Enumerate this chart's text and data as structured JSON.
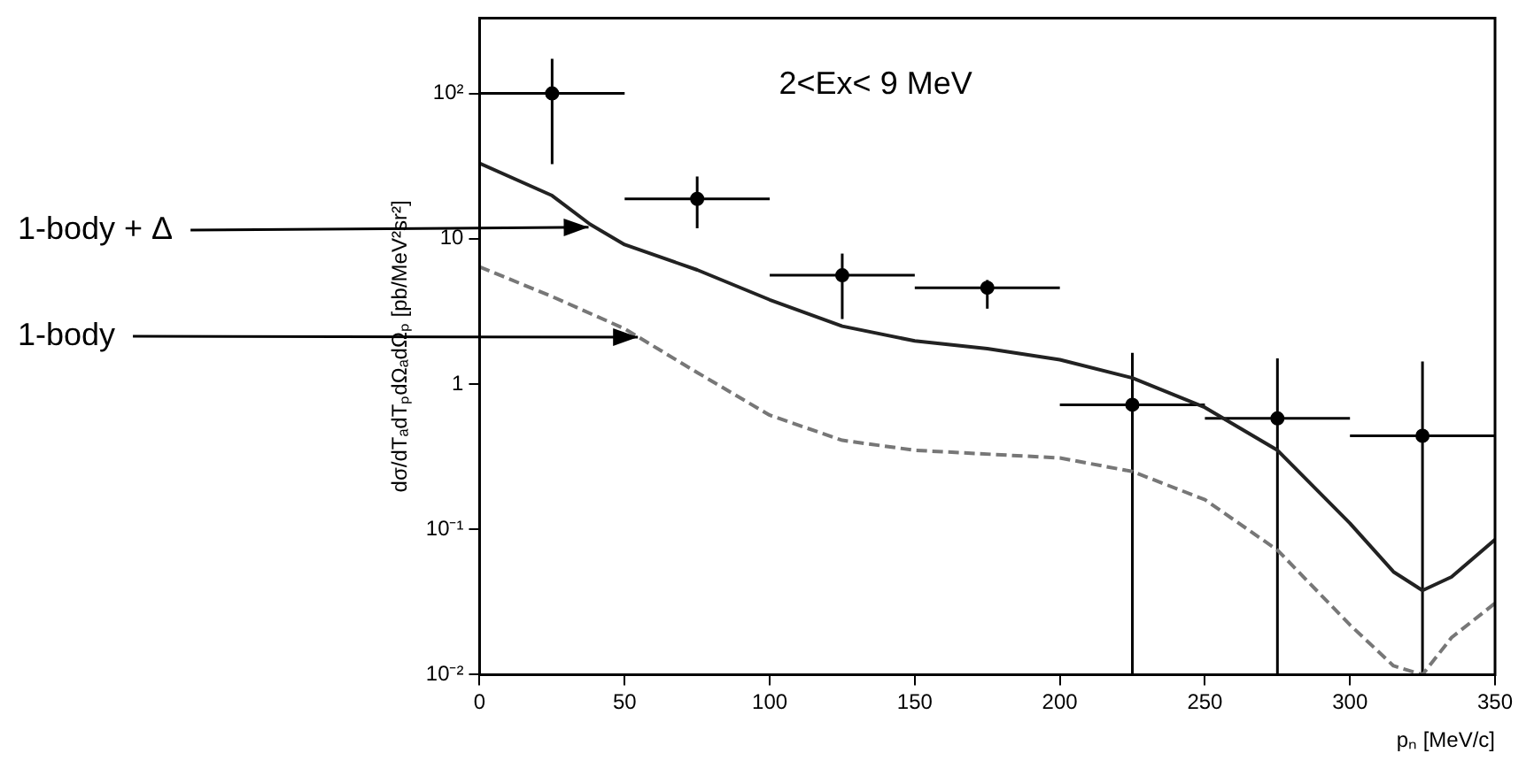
{
  "chart_data": {
    "type": "scatter",
    "xlabel": "pₙ [MeV/c]",
    "ylabel": "dσ/dTₐdTₚdΩₐdΩₚ [pb/MeV²sr²]",
    "log": "y",
    "grid": false,
    "legend": false,
    "xlim": [
      0,
      350
    ],
    "xticks": [
      0,
      50,
      100,
      150,
      200,
      250,
      300,
      350
    ],
    "ylim": [
      0.01,
      330
    ],
    "yticks": [
      {
        "value": 0.01,
        "label": "10⁻²"
      },
      {
        "value": 0.1,
        "label": "10⁻¹"
      },
      1,
      10,
      {
        "value": 100,
        "label": "10²"
      }
    ],
    "annotations": [
      "2<Ex< 9 MeV",
      {
        "text": "1-body + Δ",
        "x": 40,
        "y": 12
      },
      {
        "text": "1-body",
        "x": 57,
        "y": 2.1
      }
    ],
    "series": [
      {
        "color": "#000000",
        "marker": "circle",
        "x": [
          25,
          75,
          125,
          175,
          225,
          275,
          325
        ],
        "values": [
          100,
          18.8,
          5.6,
          4.6,
          0.72,
          0.58,
          0.44
        ],
        "errors": [
          [
            32.6,
            173
          ],
          [
            11.8,
            26.8
          ],
          [
            2.8,
            7.9
          ],
          [
            3.3,
            5.2
          ],
          [
            0.01,
            1.64
          ],
          [
            0.01,
            1.5
          ],
          [
            0.01,
            1.43
          ]
        ],
        "xerrors": [
          25,
          25,
          25,
          25,
          25,
          25,
          25
        ]
      },
      {
        "type": "line",
        "color": "#222222",
        "line_style": "solid",
        "marker": "none",
        "x": [
          0,
          25,
          38,
          50,
          75,
          100,
          125,
          150,
          175,
          200,
          225,
          250,
          275,
          300,
          315,
          325,
          335,
          350
        ],
        "values": [
          33,
          19.8,
          12.6,
          9.1,
          6.1,
          3.8,
          2.5,
          1.98,
          1.75,
          1.47,
          1.1,
          0.69,
          0.35,
          0.11,
          0.051,
          0.038,
          0.047,
          0.085
        ]
      },
      {
        "type": "line",
        "color": "#777777",
        "line_style": "dashed",
        "marker": "none",
        "x": [
          0,
          25,
          50,
          75,
          100,
          125,
          150,
          200,
          225,
          250,
          275,
          300,
          315,
          325,
          335,
          350
        ],
        "values": [
          6.4,
          4.0,
          2.4,
          1.2,
          0.61,
          0.41,
          0.35,
          0.31,
          0.25,
          0.16,
          0.072,
          0.022,
          0.0115,
          0.01,
          0.018,
          0.031
        ]
      }
    ]
  }
}
